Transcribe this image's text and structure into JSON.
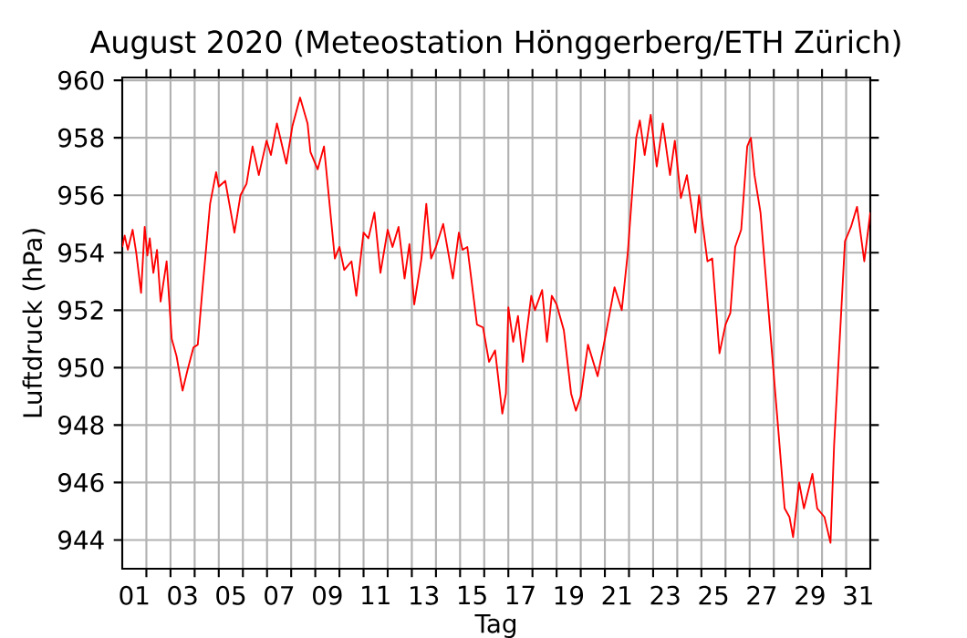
{
  "chart_data": {
    "type": "line",
    "title": "August 2020  (Meteostation Hönggerberg/ETH Zürich)",
    "xlabel": "Tag",
    "ylabel": "Luftdruck (hPa)",
    "xlim": [
      0,
      31
    ],
    "ylim": [
      943.0,
      960.1
    ],
    "xticks": [
      {
        "value": 0.5,
        "label": "01"
      },
      {
        "value": 1,
        "label": null
      },
      {
        "value": 2,
        "label": null
      },
      {
        "value": 2.5,
        "label": "03"
      },
      {
        "value": 3,
        "label": null
      },
      {
        "value": 4,
        "label": null
      },
      {
        "value": 4.5,
        "label": "05"
      },
      {
        "value": 5,
        "label": null
      },
      {
        "value": 6,
        "label": null
      },
      {
        "value": 6.5,
        "label": "07"
      },
      {
        "value": 7,
        "label": null
      },
      {
        "value": 8,
        "label": null
      },
      {
        "value": 8.5,
        "label": "09"
      },
      {
        "value": 9,
        "label": null
      },
      {
        "value": 10,
        "label": null
      },
      {
        "value": 10.5,
        "label": "11"
      },
      {
        "value": 11,
        "label": null
      },
      {
        "value": 12,
        "label": null
      },
      {
        "value": 12.5,
        "label": "13"
      },
      {
        "value": 13,
        "label": null
      },
      {
        "value": 14,
        "label": null
      },
      {
        "value": 14.5,
        "label": "15"
      },
      {
        "value": 15,
        "label": null
      },
      {
        "value": 16,
        "label": null
      },
      {
        "value": 16.5,
        "label": "17"
      },
      {
        "value": 17,
        "label": null
      },
      {
        "value": 18,
        "label": null
      },
      {
        "value": 18.5,
        "label": "19"
      },
      {
        "value": 19,
        "label": null
      },
      {
        "value": 20,
        "label": null
      },
      {
        "value": 20.5,
        "label": "21"
      },
      {
        "value": 21,
        "label": null
      },
      {
        "value": 22,
        "label": null
      },
      {
        "value": 22.5,
        "label": "23"
      },
      {
        "value": 23,
        "label": null
      },
      {
        "value": 24,
        "label": null
      },
      {
        "value": 24.5,
        "label": "25"
      },
      {
        "value": 25,
        "label": null
      },
      {
        "value": 26,
        "label": null
      },
      {
        "value": 26.5,
        "label": "27"
      },
      {
        "value": 27,
        "label": null
      },
      {
        "value": 28,
        "label": null
      },
      {
        "value": 28.5,
        "label": "29"
      },
      {
        "value": 29,
        "label": null
      },
      {
        "value": 30,
        "label": null
      },
      {
        "value": 30.5,
        "label": "31"
      }
    ],
    "yticks": [
      944,
      946,
      948,
      950,
      952,
      954,
      956,
      958,
      960
    ],
    "grid": true,
    "marker": "none",
    "line_style": "solid",
    "series": [
      {
        "color": "#ff0000",
        "x": [
          0,
          0.1,
          0.23,
          0.43,
          0.58,
          0.78,
          0.93,
          1.04,
          1.14,
          1.29,
          1.44,
          1.59,
          1.84,
          2.05,
          2.25,
          2.5,
          2.7,
          2.95,
          3.13,
          3.31,
          3.64,
          3.89,
          4.0,
          4.27,
          4.65,
          4.9,
          5.15,
          5.4,
          5.66,
          5.98,
          6.16,
          6.41,
          6.8,
          7.05,
          7.37,
          7.68,
          7.8,
          8.1,
          8.36,
          8.81,
          9.0,
          9.2,
          9.5,
          9.7,
          10.0,
          10.2,
          10.45,
          10.7,
          11.0,
          11.2,
          11.45,
          11.7,
          11.9,
          12.1,
          12.4,
          12.6,
          12.8,
          13.0,
          13.3,
          13.7,
          13.95,
          14.1,
          14.3,
          14.7,
          14.95,
          15.2,
          15.45,
          15.75,
          15.9,
          16.0,
          16.2,
          16.4,
          16.6,
          16.95,
          17.1,
          17.4,
          17.6,
          17.8,
          18.0,
          18.3,
          18.6,
          18.8,
          19.0,
          19.3,
          19.7,
          20.0,
          20.4,
          20.7,
          20.95,
          21.3,
          21.45,
          21.65,
          21.9,
          22.15,
          22.4,
          22.7,
          22.9,
          23.15,
          23.4,
          23.75,
          23.9,
          24.25,
          24.45,
          24.75,
          25.0,
          25.2,
          25.4,
          25.65,
          25.9,
          26.05,
          26.2,
          26.45,
          26.8,
          27.2,
          27.45,
          27.65,
          27.8,
          28.05,
          28.25,
          28.6,
          28.8,
          29.1,
          29.35,
          29.5,
          29.95,
          30.2,
          30.45,
          30.75,
          31.0
        ],
        "values": [
          954.2,
          954.6,
          954.1,
          954.8,
          954.0,
          952.6,
          954.9,
          953.9,
          954.5,
          953.3,
          954.1,
          952.3,
          953.7,
          951.0,
          950.4,
          949.2,
          949.9,
          950.7,
          950.8,
          952.6,
          955.7,
          956.8,
          956.3,
          956.5,
          954.7,
          956.0,
          956.4,
          957.7,
          956.7,
          957.9,
          957.4,
          958.5,
          957.1,
          958.4,
          959.4,
          958.5,
          957.5,
          956.9,
          957.7,
          953.8,
          954.2,
          953.4,
          953.7,
          952.5,
          954.7,
          954.5,
          955.4,
          953.3,
          954.8,
          954.2,
          954.9,
          953.1,
          954.3,
          952.2,
          953.8,
          955.7,
          953.8,
          954.2,
          955.0,
          953.1,
          954.7,
          954.1,
          954.2,
          951.5,
          951.4,
          950.2,
          950.6,
          948.4,
          949.1,
          952.1,
          950.9,
          951.8,
          950.2,
          952.5,
          952.0,
          952.7,
          950.9,
          952.5,
          952.2,
          951.3,
          949.1,
          948.5,
          949.0,
          950.8,
          949.7,
          951.0,
          952.8,
          952.0,
          954.0,
          958.0,
          958.6,
          957.4,
          958.8,
          957.0,
          958.5,
          956.7,
          957.9,
          955.9,
          956.7,
          954.7,
          956.0,
          953.7,
          953.8,
          950.5,
          951.5,
          951.9,
          954.2,
          954.8,
          957.7,
          958.0,
          956.7,
          955.4,
          951.8,
          947.7,
          945.1,
          944.8,
          944.1,
          946.0,
          945.1,
          946.3,
          945.1,
          944.8,
          943.9,
          947.3,
          954.4,
          954.9,
          955.6,
          953.7,
          955.4
        ]
      }
    ]
  }
}
